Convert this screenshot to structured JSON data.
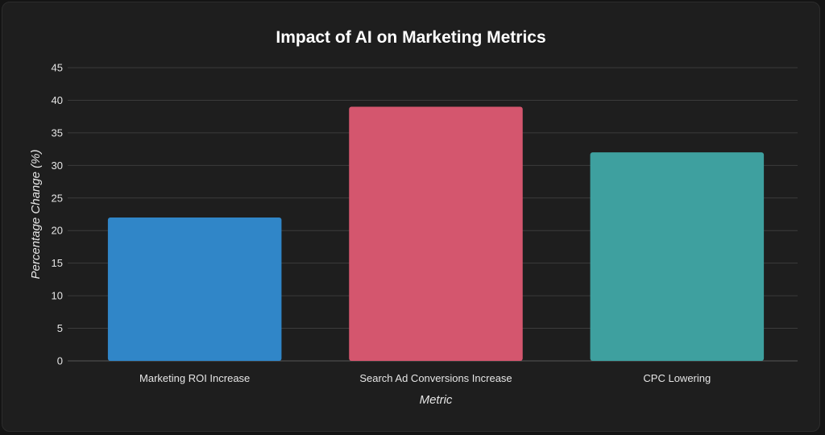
{
  "chart_data": {
    "type": "bar",
    "title": "Impact of AI on Marketing Metrics",
    "xlabel": "Metric",
    "ylabel": "Percentage Change (%)",
    "categories": [
      "Marketing ROI Increase",
      "Search Ad Conversions Increase",
      "CPC Lowering"
    ],
    "values": [
      22,
      39,
      32
    ],
    "colors": [
      "#3086c8",
      "#d4566e",
      "#3ea09f"
    ],
    "ylim": [
      0,
      45
    ],
    "yticks": [
      0,
      5,
      10,
      15,
      20,
      25,
      30,
      35,
      40,
      45
    ],
    "grid": true,
    "legend": "none"
  }
}
